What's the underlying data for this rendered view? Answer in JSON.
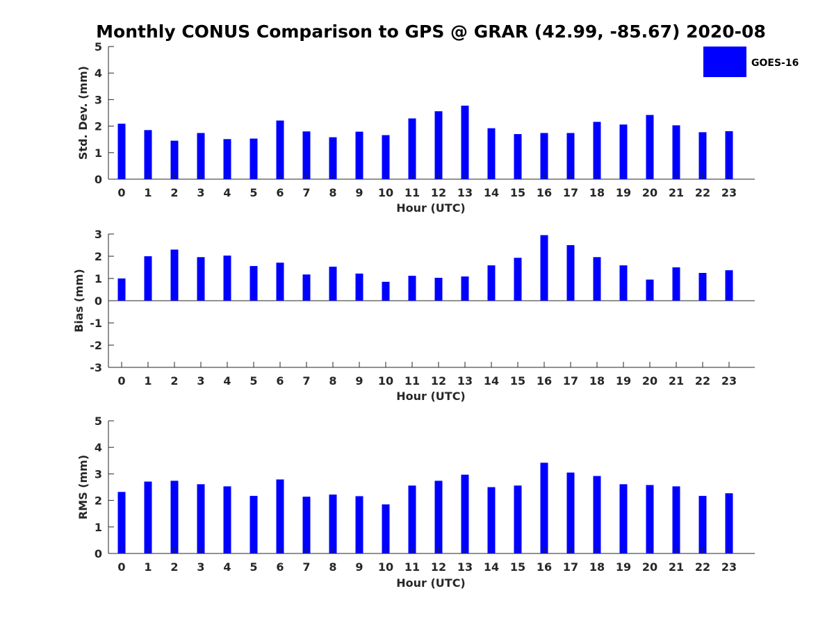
{
  "title": "Monthly CONUS Comparison to GPS @ GRAR (42.99, -85.67) 2020-08",
  "legend": {
    "label": "GOES-16",
    "color": "#0000ff",
    "placement": "top-right"
  },
  "chart_data": [
    {
      "type": "bar",
      "xlabel": "Hour (UTC)",
      "ylabel": "Std. Dev. (mm)",
      "ylim": [
        0,
        5
      ],
      "yticks": [
        0,
        1,
        2,
        3,
        4,
        5
      ],
      "categories": [
        "0",
        "1",
        "2",
        "3",
        "4",
        "5",
        "6",
        "7",
        "8",
        "9",
        "10",
        "11",
        "12",
        "13",
        "14",
        "15",
        "16",
        "17",
        "18",
        "19",
        "20",
        "21",
        "22",
        "23"
      ],
      "series": [
        {
          "name": "GOES-16",
          "values": [
            2.09,
            1.85,
            1.45,
            1.74,
            1.51,
            1.53,
            2.21,
            1.8,
            1.58,
            1.79,
            1.66,
            2.29,
            2.56,
            2.77,
            1.92,
            1.7,
            1.74,
            1.74,
            2.16,
            2.06,
            2.42,
            2.03,
            1.77,
            1.81
          ]
        }
      ],
      "bar_color": "#0000ff",
      "grid": false
    },
    {
      "type": "bar",
      "xlabel": "Hour (UTC)",
      "ylabel": "Bias (mm)",
      "ylim": [
        -3,
        3
      ],
      "yticks": [
        -3,
        -2,
        -1,
        0,
        1,
        2,
        3
      ],
      "categories": [
        "0",
        "1",
        "2",
        "3",
        "4",
        "5",
        "6",
        "7",
        "8",
        "9",
        "10",
        "11",
        "12",
        "13",
        "14",
        "15",
        "16",
        "17",
        "18",
        "19",
        "20",
        "21",
        "22",
        "23"
      ],
      "series": [
        {
          "name": "GOES-16",
          "values": [
            1.0,
            2.0,
            2.3,
            1.96,
            2.03,
            1.56,
            1.71,
            1.18,
            1.53,
            1.22,
            0.85,
            1.12,
            1.03,
            1.09,
            1.59,
            1.93,
            2.95,
            2.5,
            1.96,
            1.59,
            0.95,
            1.5,
            1.25,
            1.37
          ]
        }
      ],
      "bar_color": "#0000ff",
      "grid": false
    },
    {
      "type": "bar",
      "xlabel": "Hour (UTC)",
      "ylabel": "RMS (mm)",
      "ylim": [
        0,
        5
      ],
      "yticks": [
        0,
        1,
        2,
        3,
        4,
        5
      ],
      "categories": [
        "0",
        "1",
        "2",
        "3",
        "4",
        "5",
        "6",
        "7",
        "8",
        "9",
        "10",
        "11",
        "12",
        "13",
        "14",
        "15",
        "16",
        "17",
        "18",
        "19",
        "20",
        "21",
        "22",
        "23"
      ],
      "series": [
        {
          "name": "GOES-16",
          "values": [
            2.32,
            2.71,
            2.74,
            2.61,
            2.53,
            2.17,
            2.79,
            2.14,
            2.22,
            2.16,
            1.85,
            2.56,
            2.74,
            2.97,
            2.5,
            2.56,
            3.42,
            3.05,
            2.92,
            2.61,
            2.58,
            2.53,
            2.17,
            2.27
          ]
        }
      ],
      "bar_color": "#0000ff",
      "grid": false
    }
  ]
}
